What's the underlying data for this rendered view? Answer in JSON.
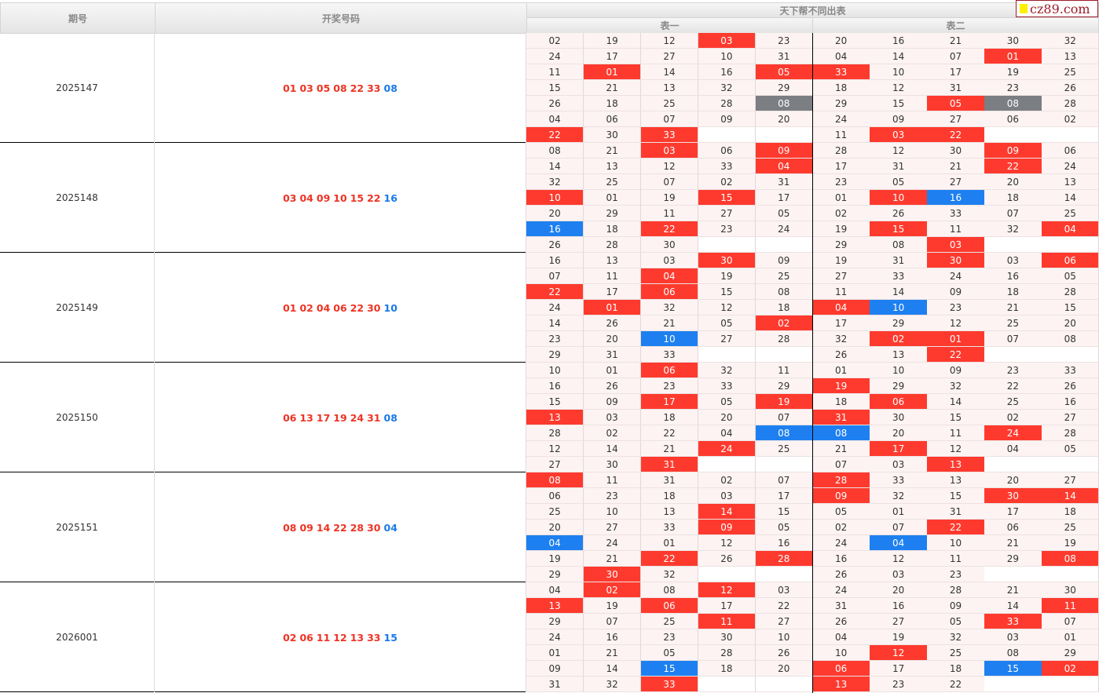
{
  "header": {
    "period": "期号",
    "draw": "开奖号码",
    "title": "天下帮不同出表",
    "table1": "表一",
    "table2": "表二",
    "logo": "cz89.com"
  },
  "colors": {
    "red": "#fe3a2e",
    "blue": "#1e80f0",
    "both": "#7b7e82"
  },
  "rows": [
    {
      "period": "2025147",
      "reds": [
        "01",
        "03",
        "05",
        "08",
        "22",
        "33"
      ],
      "blue": "08",
      "t1": [
        "02",
        "19",
        "12",
        "03",
        "23",
        "24",
        "17",
        "27",
        "10",
        "31",
        "11",
        "01",
        "14",
        "16",
        "05",
        "15",
        "21",
        "13",
        "32",
        "29",
        "26",
        "18",
        "25",
        "28",
        "08",
        "04",
        "06",
        "07",
        "09",
        "20",
        "22",
        "30",
        "33"
      ],
      "t2": [
        "20",
        "16",
        "21",
        "30",
        "32",
        "04",
        "14",
        "07",
        "01",
        "13",
        "33",
        "10",
        "17",
        "19",
        "25",
        "18",
        "12",
        "31",
        "23",
        "26",
        "29",
        "15",
        "05",
        "08",
        "28",
        "24",
        "09",
        "27",
        "06",
        "02",
        "11",
        "03",
        "22"
      ]
    },
    {
      "period": "2025148",
      "reds": [
        "03",
        "04",
        "09",
        "10",
        "15",
        "22"
      ],
      "blue": "16",
      "t1": [
        "08",
        "21",
        "03",
        "06",
        "09",
        "14",
        "13",
        "12",
        "33",
        "04",
        "32",
        "25",
        "07",
        "02",
        "31",
        "10",
        "01",
        "19",
        "15",
        "17",
        "20",
        "29",
        "11",
        "27",
        "05",
        "16",
        "18",
        "22",
        "23",
        "24",
        "26",
        "28",
        "30"
      ],
      "t2": [
        "28",
        "12",
        "30",
        "09",
        "06",
        "17",
        "31",
        "21",
        "22",
        "24",
        "23",
        "05",
        "27",
        "20",
        "13",
        "01",
        "10",
        "16",
        "18",
        "14",
        "02",
        "26",
        "33",
        "07",
        "25",
        "19",
        "15",
        "11",
        "32",
        "04",
        "29",
        "08",
        "03"
      ]
    },
    {
      "period": "2025149",
      "reds": [
        "01",
        "02",
        "04",
        "06",
        "22",
        "30"
      ],
      "blue": "10",
      "t1": [
        "16",
        "13",
        "03",
        "30",
        "09",
        "07",
        "11",
        "04",
        "19",
        "25",
        "22",
        "17",
        "06",
        "15",
        "08",
        "24",
        "01",
        "32",
        "12",
        "18",
        "14",
        "26",
        "21",
        "05",
        "02",
        "23",
        "20",
        "10",
        "27",
        "28",
        "29",
        "31",
        "33"
      ],
      "t2": [
        "19",
        "31",
        "30",
        "03",
        "06",
        "27",
        "33",
        "24",
        "16",
        "05",
        "11",
        "14",
        "09",
        "18",
        "28",
        "04",
        "10",
        "23",
        "21",
        "15",
        "17",
        "29",
        "12",
        "25",
        "20",
        "32",
        "02",
        "01",
        "07",
        "08",
        "26",
        "13",
        "22"
      ]
    },
    {
      "period": "2025150",
      "reds": [
        "06",
        "13",
        "17",
        "19",
        "24",
        "31"
      ],
      "blue": "08",
      "t1": [
        "10",
        "01",
        "06",
        "32",
        "11",
        "16",
        "26",
        "23",
        "33",
        "29",
        "15",
        "09",
        "17",
        "05",
        "19",
        "13",
        "03",
        "18",
        "20",
        "07",
        "28",
        "02",
        "22",
        "04",
        "08",
        "12",
        "14",
        "21",
        "24",
        "25",
        "27",
        "30",
        "31"
      ],
      "t2": [
        "01",
        "10",
        "09",
        "23",
        "33",
        "19",
        "29",
        "32",
        "22",
        "26",
        "18",
        "06",
        "14",
        "25",
        "16",
        "31",
        "30",
        "15",
        "02",
        "27",
        "08",
        "20",
        "11",
        "24",
        "28",
        "21",
        "17",
        "12",
        "04",
        "05",
        "07",
        "03",
        "13"
      ]
    },
    {
      "period": "2025151",
      "reds": [
        "08",
        "09",
        "14",
        "22",
        "28",
        "30"
      ],
      "blue": "04",
      "t1": [
        "08",
        "11",
        "31",
        "02",
        "07",
        "06",
        "23",
        "18",
        "03",
        "17",
        "25",
        "10",
        "13",
        "14",
        "15",
        "20",
        "27",
        "33",
        "09",
        "05",
        "04",
        "24",
        "01",
        "12",
        "16",
        "19",
        "21",
        "22",
        "26",
        "28",
        "29",
        "30",
        "32"
      ],
      "t2": [
        "28",
        "33",
        "13",
        "20",
        "27",
        "09",
        "32",
        "15",
        "30",
        "14",
        "05",
        "01",
        "31",
        "17",
        "18",
        "02",
        "07",
        "22",
        "06",
        "25",
        "24",
        "04",
        "10",
        "21",
        "19",
        "16",
        "12",
        "11",
        "29",
        "08",
        "26",
        "03",
        "23"
      ]
    },
    {
      "period": "2026001",
      "reds": [
        "02",
        "06",
        "11",
        "12",
        "13",
        "33"
      ],
      "blue": "15",
      "t1": [
        "04",
        "02",
        "08",
        "12",
        "03",
        "13",
        "19",
        "06",
        "17",
        "22",
        "29",
        "07",
        "25",
        "11",
        "27",
        "24",
        "16",
        "23",
        "30",
        "10",
        "01",
        "21",
        "05",
        "28",
        "26",
        "09",
        "14",
        "15",
        "18",
        "20",
        "31",
        "32",
        "33"
      ],
      "t2": [
        "24",
        "20",
        "28",
        "21",
        "30",
        "31",
        "16",
        "09",
        "14",
        "11",
        "26",
        "27",
        "05",
        "33",
        "07",
        "04",
        "19",
        "32",
        "03",
        "01",
        "10",
        "12",
        "25",
        "08",
        "29",
        "06",
        "17",
        "18",
        "15",
        "02",
        "13",
        "23",
        "22"
      ]
    }
  ]
}
